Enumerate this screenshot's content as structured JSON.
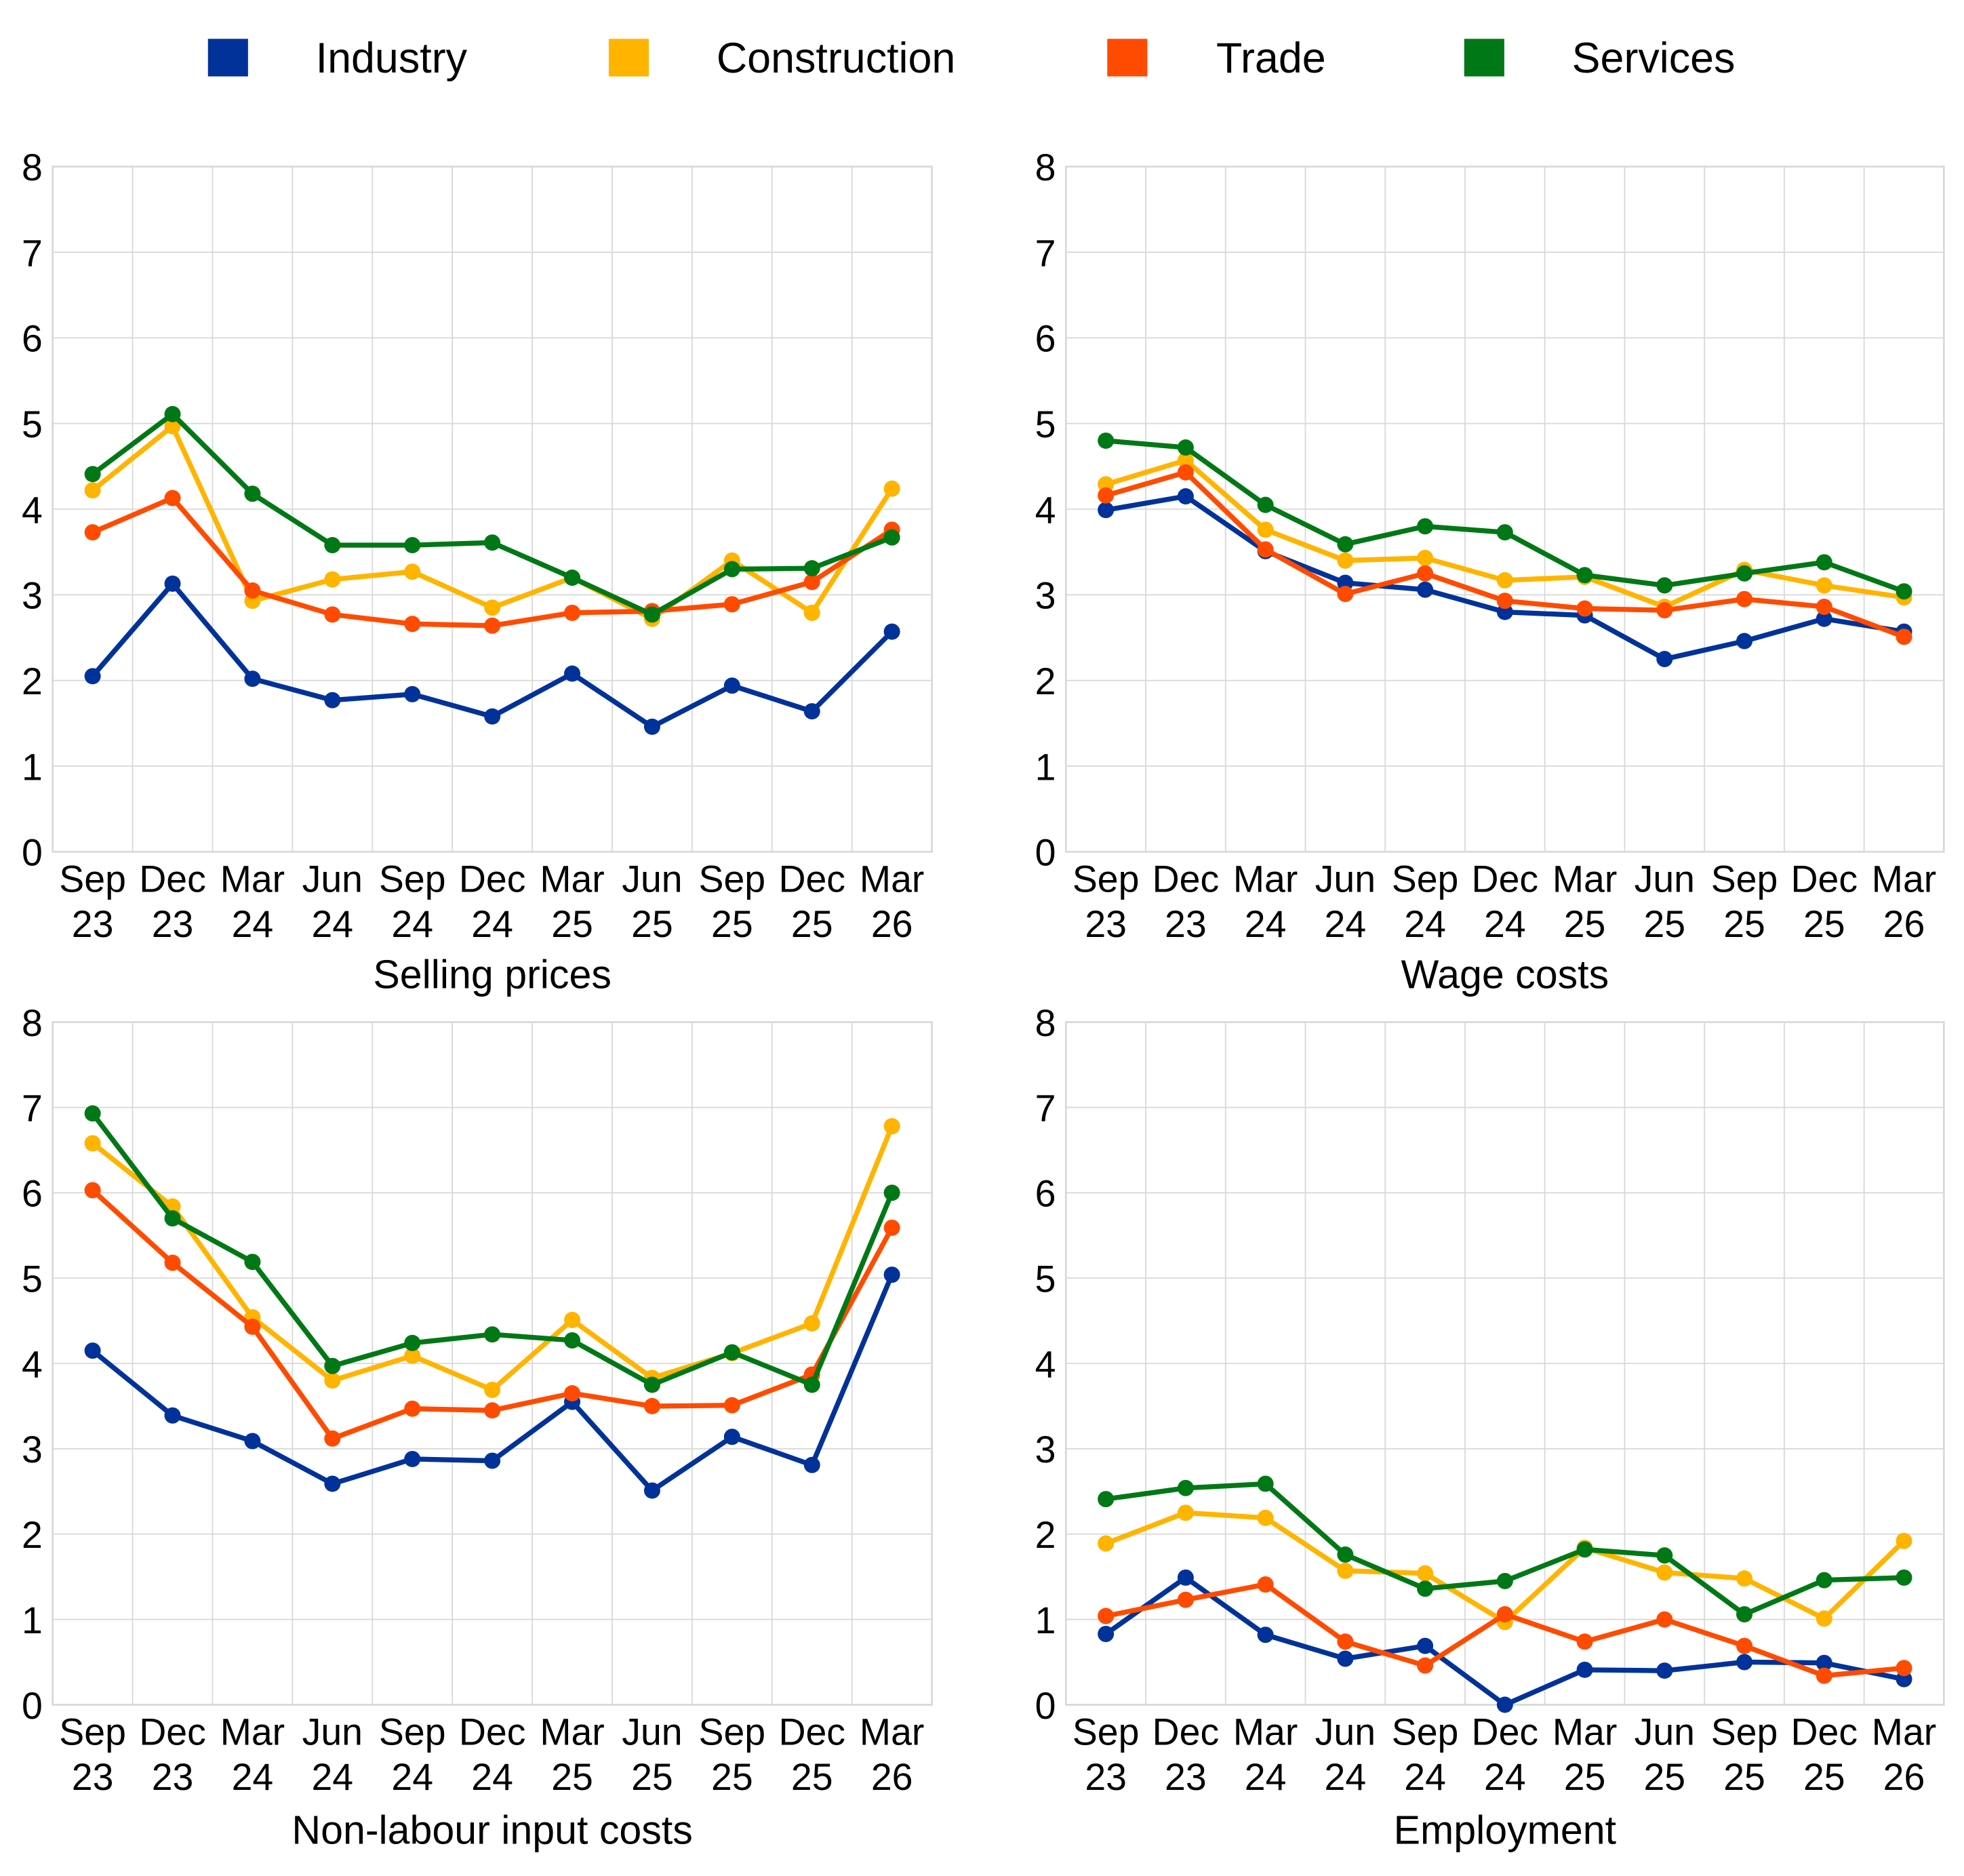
{
  "chart_data": [
    {
      "type": "line",
      "title": "Selling prices",
      "xlabel": "Selling prices",
      "ylabel": "",
      "ylim": [
        0,
        8
      ],
      "yticks": [
        "0",
        "1",
        "2",
        "3",
        "4",
        "5",
        "6",
        "7",
        "8"
      ],
      "categories": [
        [
          "Sep",
          "23"
        ],
        [
          "Dec",
          "23"
        ],
        [
          "Mar",
          "24"
        ],
        [
          "Jun",
          "24"
        ],
        [
          "Sep",
          "24"
        ],
        [
          "Dec",
          "24"
        ],
        [
          "Mar",
          "25"
        ],
        [
          "Jun",
          "25"
        ],
        [
          "Sep",
          "25"
        ],
        [
          "Dec",
          "25"
        ],
        [
          "Mar",
          "26"
        ]
      ],
      "grid": true,
      "series": [
        {
          "name": "Industry",
          "values": [
            2.05,
            3.13,
            2.02,
            1.77,
            1.84,
            1.58,
            2.08,
            1.46,
            1.94,
            1.64,
            2.57
          ]
        },
        {
          "name": "Construction",
          "values": [
            4.22,
            4.97,
            2.93,
            3.18,
            3.27,
            2.85,
            3.2,
            2.72,
            3.4,
            2.79,
            4.24
          ]
        },
        {
          "name": "Trade",
          "values": [
            3.73,
            4.13,
            3.05,
            2.77,
            2.66,
            2.64,
            2.79,
            2.81,
            2.89,
            3.15,
            3.76
          ]
        },
        {
          "name": "Services",
          "values": [
            4.41,
            5.11,
            4.18,
            3.58,
            3.58,
            3.61,
            3.2,
            2.77,
            3.3,
            3.31,
            3.67
          ]
        }
      ]
    },
    {
      "type": "line",
      "title": "Wage costs",
      "xlabel": "Wage costs",
      "ylabel": "",
      "ylim": [
        0,
        8
      ],
      "yticks": [
        "0",
        "1",
        "2",
        "3",
        "4",
        "5",
        "6",
        "7",
        "8"
      ],
      "categories": [
        [
          "Sep",
          "23"
        ],
        [
          "Dec",
          "23"
        ],
        [
          "Mar",
          "24"
        ],
        [
          "Jun",
          "24"
        ],
        [
          "Sep",
          "24"
        ],
        [
          "Dec",
          "24"
        ],
        [
          "Mar",
          "25"
        ],
        [
          "Jun",
          "25"
        ],
        [
          "Sep",
          "25"
        ],
        [
          "Dec",
          "25"
        ],
        [
          "Mar",
          "26"
        ]
      ],
      "grid": true,
      "series": [
        {
          "name": "Industry",
          "values": [
            3.99,
            4.15,
            3.51,
            3.14,
            3.06,
            2.8,
            2.76,
            2.25,
            2.46,
            2.72,
            2.57
          ]
        },
        {
          "name": "Construction",
          "values": [
            4.29,
            4.57,
            3.76,
            3.4,
            3.43,
            3.17,
            3.21,
            2.86,
            3.29,
            3.11,
            2.97
          ]
        },
        {
          "name": "Trade",
          "values": [
            4.16,
            4.43,
            3.53,
            3.01,
            3.25,
            2.93,
            2.84,
            2.82,
            2.95,
            2.86,
            2.51
          ]
        },
        {
          "name": "Services",
          "values": [
            4.8,
            4.72,
            4.05,
            3.59,
            3.8,
            3.73,
            3.23,
            3.11,
            3.25,
            3.38,
            3.04
          ]
        }
      ]
    },
    {
      "type": "line",
      "title": "Non-labour input costs",
      "xlabel": "Non-labour input costs",
      "ylabel": "",
      "ylim": [
        0,
        8
      ],
      "yticks": [
        "0",
        "1",
        "2",
        "3",
        "4",
        "5",
        "6",
        "7",
        "8"
      ],
      "categories": [
        [
          "Sep",
          "23"
        ],
        [
          "Dec",
          "23"
        ],
        [
          "Mar",
          "24"
        ],
        [
          "Jun",
          "24"
        ],
        [
          "Sep",
          "24"
        ],
        [
          "Dec",
          "24"
        ],
        [
          "Mar",
          "25"
        ],
        [
          "Jun",
          "25"
        ],
        [
          "Sep",
          "25"
        ],
        [
          "Dec",
          "25"
        ],
        [
          "Mar",
          "26"
        ]
      ],
      "grid": true,
      "series": [
        {
          "name": "Industry",
          "values": [
            4.15,
            3.39,
            3.09,
            2.59,
            2.88,
            2.86,
            3.55,
            2.51,
            3.14,
            2.81,
            5.04
          ]
        },
        {
          "name": "Construction",
          "values": [
            6.58,
            5.84,
            4.54,
            3.8,
            4.09,
            3.69,
            4.51,
            3.83,
            4.12,
            4.47,
            6.78
          ]
        },
        {
          "name": "Trade",
          "values": [
            6.03,
            5.18,
            4.43,
            3.12,
            3.47,
            3.45,
            3.65,
            3.5,
            3.51,
            3.87,
            5.59
          ]
        },
        {
          "name": "Services",
          "values": [
            6.93,
            5.7,
            5.19,
            3.97,
            4.24,
            4.34,
            4.27,
            3.75,
            4.13,
            3.75,
            6.0
          ]
        }
      ]
    },
    {
      "type": "line",
      "title": "Employment",
      "xlabel": "Employment",
      "ylabel": "",
      "ylim": [
        0,
        8
      ],
      "yticks": [
        "0",
        "1",
        "2",
        "3",
        "4",
        "5",
        "6",
        "7",
        "8"
      ],
      "categories": [
        [
          "Sep",
          "23"
        ],
        [
          "Dec",
          "23"
        ],
        [
          "Mar",
          "24"
        ],
        [
          "Jun",
          "24"
        ],
        [
          "Sep",
          "24"
        ],
        [
          "Dec",
          "24"
        ],
        [
          "Mar",
          "25"
        ],
        [
          "Jun",
          "25"
        ],
        [
          "Sep",
          "25"
        ],
        [
          "Dec",
          "25"
        ],
        [
          "Mar",
          "26"
        ]
      ],
      "grid": true,
      "series": [
        {
          "name": "Industry",
          "values": [
            0.83,
            1.49,
            0.82,
            0.54,
            0.69,
            0.0,
            0.41,
            0.4,
            0.5,
            0.49,
            0.3
          ]
        },
        {
          "name": "Construction",
          "values": [
            1.89,
            2.25,
            2.19,
            1.57,
            1.54,
            0.97,
            1.84,
            1.55,
            1.48,
            1.01,
            1.92
          ]
        },
        {
          "name": "Trade",
          "values": [
            1.04,
            1.23,
            1.41,
            0.74,
            0.46,
            1.06,
            0.74,
            1.0,
            0.69,
            0.34,
            0.43
          ]
        },
        {
          "name": "Services",
          "values": [
            2.41,
            2.54,
            2.59,
            1.76,
            1.36,
            1.45,
            1.82,
            1.75,
            1.06,
            1.46,
            1.49
          ]
        }
      ]
    }
  ],
  "legend": {
    "placement": "top",
    "items": [
      {
        "name": "Industry",
        "color": "#003299"
      },
      {
        "name": "Construction",
        "color": "#FFB400"
      },
      {
        "name": "Trade",
        "color": "#FF4B00"
      },
      {
        "name": "Services",
        "color": "#007816"
      }
    ]
  },
  "colors": {
    "grid": "#D9D9D9",
    "axis": "#D9D9D9",
    "text": "#000000"
  }
}
